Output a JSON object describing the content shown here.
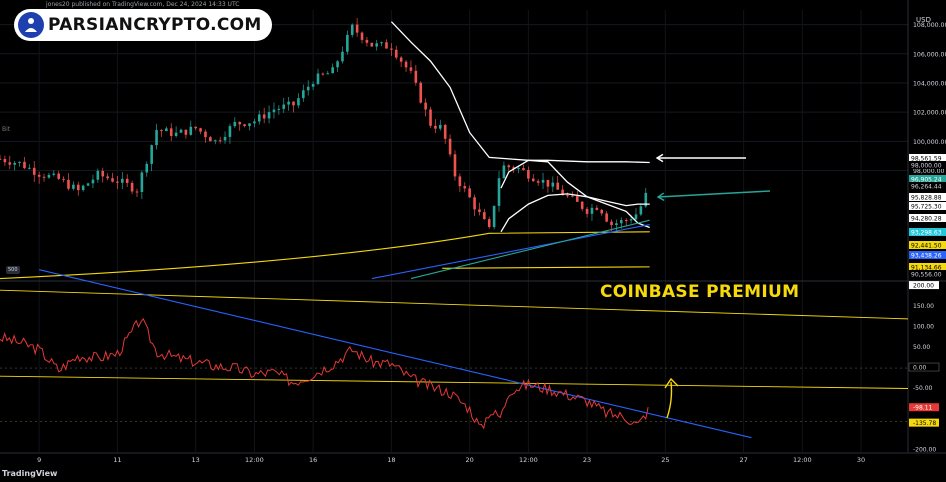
{
  "watermark": {
    "brand": "PARSIANCRYPTO.COM"
  },
  "published_text": "jones20 published on TradingView.com, Dec 24, 2024 14:33 UTC",
  "symbol_fragment": "Bit",
  "currency": "USD",
  "indicator_title": "COINBASE PREMIUM",
  "indicator_badge": "500",
  "tradingview_logo": "TradingView",
  "colors": {
    "background": "#000000",
    "up_candle": "#26a69a",
    "down_candle": "#ef5350",
    "white_curve": "#ffffff",
    "yellow_line": "#f5d90a",
    "blue_trendline": "#2962ff",
    "teal_trendline": "#26a69a",
    "premium_line": "#e53935",
    "arrow_white": "#ffffff",
    "arrow_green": "#26a69a",
    "arrow_yellow": "#f5d90a"
  },
  "chart_data": [
    {
      "type": "candlestick",
      "title": "",
      "y_axis_labels": [
        "108,000.00",
        "106,000.00",
        "104,000.00",
        "102,000.00",
        "100,000.00",
        "98,000.00"
      ],
      "y_ticks": [
        108000,
        106000,
        104000,
        102000,
        100000,
        98000
      ],
      "ylim": [
        90500,
        109000
      ],
      "x_tick_labels": [
        "9",
        "11",
        "13",
        "12:00",
        "16",
        "18",
        "20",
        "12:00",
        "23",
        "25",
        "27",
        "12:00",
        "30"
      ],
      "x_ticks": [
        9,
        11,
        13,
        14.5,
        16,
        18,
        20,
        21.5,
        23,
        25,
        27,
        28.5,
        30
      ],
      "xlim": [
        8.0,
        31.2
      ],
      "price_samples": {
        "t": [
          8.0,
          8.5,
          9.0,
          9.5,
          10.0,
          10.5,
          11.0,
          11.5,
          12.0,
          12.5,
          13.0,
          13.5,
          14.0,
          14.5,
          15.0,
          15.5,
          16.0,
          16.5,
          17.0,
          17.5,
          18.0,
          18.5,
          19.0,
          19.3,
          19.6,
          20.0,
          20.5,
          20.8,
          21.2,
          21.6,
          22.0,
          22.5,
          23.0,
          23.3,
          23.6,
          24.0,
          24.3,
          24.6
        ],
        "price": [
          98800,
          98500,
          97800,
          97400,
          96600,
          97700,
          97300,
          96700,
          100800,
          100500,
          100900,
          100000,
          101200,
          101400,
          102200,
          102500,
          104200,
          104800,
          107800,
          106600,
          106500,
          104600,
          101200,
          100900,
          97800,
          96100,
          93900,
          98300,
          98200,
          97600,
          97100,
          96200,
          95300,
          95600,
          94300,
          94600,
          95100,
          96900
        ]
      },
      "series": [
        {
          "name": "white-upper-curve",
          "t": [
            18.0,
            18.5,
            19.0,
            19.5,
            20.0,
            20.5,
            21.0,
            21.5,
            22.0,
            23.0,
            24.0,
            24.6
          ],
          "y": [
            108200,
            106800,
            105500,
            103700,
            100600,
            98900,
            98800,
            98700,
            98700,
            98600,
            98600,
            98550
          ]
        },
        {
          "name": "white-lower-curve",
          "t": [
            20.8,
            21.0,
            21.5,
            22.0,
            22.5,
            23.0,
            23.5,
            24.0,
            24.3,
            24.6
          ],
          "y": [
            96800,
            97900,
            98700,
            98600,
            97200,
            96200,
            95900,
            95600,
            95700,
            95700
          ]
        },
        {
          "name": "white-bottom-curve",
          "t": [
            20.8,
            21.0,
            21.5,
            22.0,
            22.5,
            23.0,
            23.5,
            24.0,
            24.3,
            24.6
          ],
          "y": [
            93800,
            94700,
            95700,
            96300,
            96400,
            96200,
            95700,
            95200,
            94400,
            94100
          ]
        }
      ],
      "price_labels": [
        "98,561.59",
        "98,000.00",
        "96,905.24",
        "96,264.44",
        "95,828.88",
        "95,725.30",
        "94,280.28",
        "93,298.63",
        "92,441.50",
        "93,438.26",
        "91,134.66",
        "90,556.00"
      ],
      "price_label_values": [
        98561.59,
        98000,
        96905.24,
        96264.44,
        95828.88,
        95725.3,
        94280.28,
        93298.63,
        92441.5,
        93438.26,
        91134.66,
        90556.0
      ]
    },
    {
      "type": "line",
      "title": "COINBASE PREMIUM",
      "y_axis_labels": [
        "200.00",
        "150.00",
        "100.00",
        "50.00",
        "0.00",
        "-50.00",
        "-98.11",
        "-135.78",
        "-200.00"
      ],
      "y_ticks": [
        200,
        150,
        100,
        50,
        0,
        -50,
        -98.11,
        -135.78,
        -200
      ],
      "ylim": [
        -205,
        210
      ],
      "premium": {
        "t": [
          8.0,
          8.6,
          9.0,
          9.5,
          10.0,
          10.5,
          11.0,
          11.6,
          12.0,
          12.5,
          13.0,
          13.5,
          14.0,
          14.5,
          15.0,
          15.5,
          16.0,
          16.5,
          17.0,
          17.5,
          18.0,
          18.5,
          19.0,
          19.5,
          20.0,
          20.3,
          20.5,
          20.8,
          21.0,
          21.5,
          22.0,
          22.5,
          23.0,
          23.5,
          24.0,
          24.3,
          24.6
        ],
        "value": [
          75,
          60,
          45,
          -5,
          30,
          25,
          35,
          120,
          40,
          25,
          15,
          5,
          0,
          -15,
          -10,
          -35,
          -15,
          10,
          45,
          15,
          10,
          -25,
          -45,
          -60,
          -100,
          -150,
          -105,
          -120,
          -55,
          -40,
          -50,
          -65,
          -80,
          -110,
          -120,
          -140,
          -98
        ]
      }
    }
  ]
}
